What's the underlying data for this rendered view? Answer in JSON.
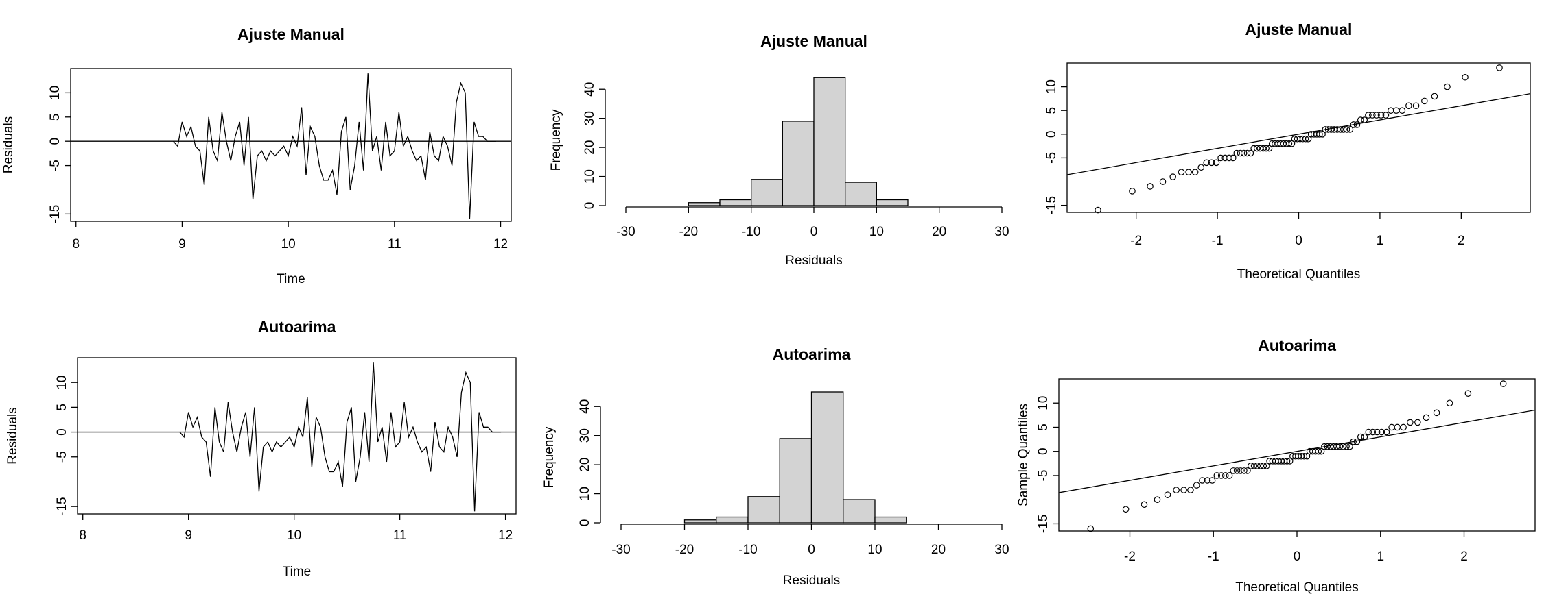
{
  "chart_data": [
    {
      "id": "ts1",
      "type": "line",
      "title": "Ajuste Manual",
      "xlabel": "Time",
      "ylabel": "Residuals",
      "xlim": [
        7.95,
        12.1
      ],
      "ylim": [
        -16.5,
        15
      ],
      "xticks": [
        8,
        9,
        10,
        11,
        12
      ],
      "yticks": [
        -15,
        -5,
        0,
        5,
        10
      ],
      "hline": 0,
      "series": [
        {
          "x": [
            8.917,
            8.958,
            9.0,
            9.042,
            9.083,
            9.125,
            9.167,
            9.208,
            9.25,
            9.292,
            9.333,
            9.375,
            9.417,
            9.458,
            9.5,
            9.542,
            9.583,
            9.625,
            9.667,
            9.708,
            9.75,
            9.792,
            9.833,
            9.875,
            9.917,
            9.958,
            10.0,
            10.042,
            10.083,
            10.125,
            10.167,
            10.208,
            10.25,
            10.292,
            10.333,
            10.375,
            10.417,
            10.458,
            10.5,
            10.542,
            10.583,
            10.625,
            10.667,
            10.708,
            10.75,
            10.792,
            10.833,
            10.875,
            10.917,
            10.958,
            11.0,
            11.042,
            11.083,
            11.125,
            11.167,
            11.208,
            11.25,
            11.292,
            11.333,
            11.375,
            11.417,
            11.458,
            11.5,
            11.542,
            11.583,
            11.625,
            11.667,
            11.708,
            11.75,
            11.792,
            11.833,
            11.875,
            11.917,
            11.958
          ],
          "values": [
            0,
            -1,
            4,
            1,
            3,
            -1,
            -2,
            -9,
            5,
            -2,
            -4,
            6,
            0,
            -4,
            1,
            4,
            -5,
            5,
            -12,
            -3,
            -2,
            -4,
            -2,
            -3,
            -2,
            -1,
            -3,
            1,
            -1,
            7,
            -7,
            3,
            1,
            -5,
            -8,
            -8,
            -6,
            -11,
            2,
            5,
            -10,
            -5,
            4,
            -6,
            14,
            -2,
            1,
            -6,
            4,
            -3,
            -2,
            6,
            -1,
            1,
            -2,
            -4,
            -3,
            -8,
            2,
            -3,
            -4,
            1,
            -1,
            -5,
            8,
            12,
            10,
            -16,
            4,
            1,
            1,
            0,
            0,
            0
          ]
        }
      ]
    },
    {
      "id": "hist1",
      "type": "bar",
      "title": "Ajuste Manual",
      "xlabel": "Residuals",
      "ylabel": "Frequency",
      "xlim": [
        -30,
        30
      ],
      "ylim": [
        0,
        45
      ],
      "xticks": [
        -30,
        -20,
        -10,
        0,
        10,
        20,
        30
      ],
      "yticks": [
        0,
        10,
        20,
        30,
        40
      ],
      "bins": [
        [
          -20,
          -15
        ],
        [
          -15,
          -10
        ],
        [
          -10,
          -5
        ],
        [
          -5,
          0
        ],
        [
          0,
          5
        ],
        [
          5,
          10
        ],
        [
          10,
          15
        ]
      ],
      "values": [
        1,
        2,
        9,
        29,
        44,
        8,
        2
      ]
    },
    {
      "id": "qq1",
      "type": "scatter",
      "title": "Ajuste Manual",
      "xlabel": "Theoretical Quantiles",
      "ylabel": "",
      "xlim": [
        -2.85,
        2.85
      ],
      "ylim": [
        -16.5,
        15
      ],
      "xticks": [
        -2,
        -1,
        0,
        1,
        2
      ],
      "yticks": [
        -15,
        -5,
        0,
        5,
        10
      ],
      "line": {
        "intercept": 0,
        "slope": 3
      },
      "points": []
    },
    {
      "id": "ts2",
      "type": "line",
      "title": "Autoarima",
      "xlabel": "Time",
      "ylabel": "Residuals",
      "xlim": [
        7.95,
        12.1
      ],
      "ylim": [
        -16.5,
        15
      ],
      "xticks": [
        8,
        9,
        10,
        11,
        12
      ],
      "yticks": [
        -15,
        -5,
        0,
        5,
        10
      ],
      "hline": 0,
      "series": [
        {
          "x": [
            8.917,
            8.958,
            9.0,
            9.042,
            9.083,
            9.125,
            9.167,
            9.208,
            9.25,
            9.292,
            9.333,
            9.375,
            9.417,
            9.458,
            9.5,
            9.542,
            9.583,
            9.625,
            9.667,
            9.708,
            9.75,
            9.792,
            9.833,
            9.875,
            9.917,
            9.958,
            10.0,
            10.042,
            10.083,
            10.125,
            10.167,
            10.208,
            10.25,
            10.292,
            10.333,
            10.375,
            10.417,
            10.458,
            10.5,
            10.542,
            10.583,
            10.625,
            10.667,
            10.708,
            10.75,
            10.792,
            10.833,
            10.875,
            10.917,
            10.958,
            11.0,
            11.042,
            11.083,
            11.125,
            11.167,
            11.208,
            11.25,
            11.292,
            11.333,
            11.375,
            11.417,
            11.458,
            11.5,
            11.542,
            11.583,
            11.625,
            11.667,
            11.708,
            11.75,
            11.792,
            11.833,
            11.875,
            11.917,
            11.958
          ],
          "values": [
            0,
            -1,
            4,
            1,
            3,
            -1,
            -2,
            -9,
            5,
            -2,
            -4,
            6,
            0,
            -4,
            1,
            4,
            -5,
            5,
            -12,
            -3,
            -2,
            -4,
            -2,
            -3,
            -2,
            -1,
            -3,
            1,
            -1,
            7,
            -7,
            3,
            1,
            -5,
            -8,
            -8,
            -6,
            -11,
            2,
            5,
            -10,
            -5,
            4,
            -6,
            14,
            -2,
            1,
            -6,
            4,
            -3,
            -2,
            6,
            -1,
            1,
            -2,
            -4,
            -3,
            -8,
            2,
            -3,
            -4,
            1,
            -1,
            -5,
            8,
            12,
            10,
            -16,
            4,
            1,
            1,
            0,
            0,
            0
          ]
        }
      ]
    },
    {
      "id": "hist2",
      "type": "bar",
      "title": "Autoarima",
      "xlabel": "Residuals",
      "ylabel": "Frequency",
      "xlim": [
        -30,
        30
      ],
      "ylim": [
        0,
        45
      ],
      "xticks": [
        -30,
        -20,
        -10,
        0,
        10,
        20,
        30
      ],
      "yticks": [
        0,
        10,
        20,
        30,
        40
      ],
      "bins": [
        [
          -20,
          -15
        ],
        [
          -15,
          -10
        ],
        [
          -10,
          -5
        ],
        [
          -5,
          0
        ],
        [
          0,
          5
        ],
        [
          5,
          10
        ],
        [
          10,
          15
        ]
      ],
      "values": [
        1,
        2,
        9,
        29,
        45,
        8,
        2
      ]
    },
    {
      "id": "qq2",
      "type": "scatter",
      "title": "Autoarima",
      "xlabel": "Theoretical Quantiles",
      "ylabel": "Sample Quantiles",
      "xlim": [
        -2.85,
        2.85
      ],
      "ylim": [
        -16.5,
        15
      ],
      "xticks": [
        -2,
        -1,
        0,
        1,
        2
      ],
      "yticks": [
        -15,
        -5,
        0,
        5,
        10
      ],
      "line": {
        "intercept": 0,
        "slope": 3
      },
      "points": []
    }
  ],
  "colors": {
    "bar_fill": "#d3d3d3",
    "stroke": "#000000",
    "background": "#ffffff"
  }
}
